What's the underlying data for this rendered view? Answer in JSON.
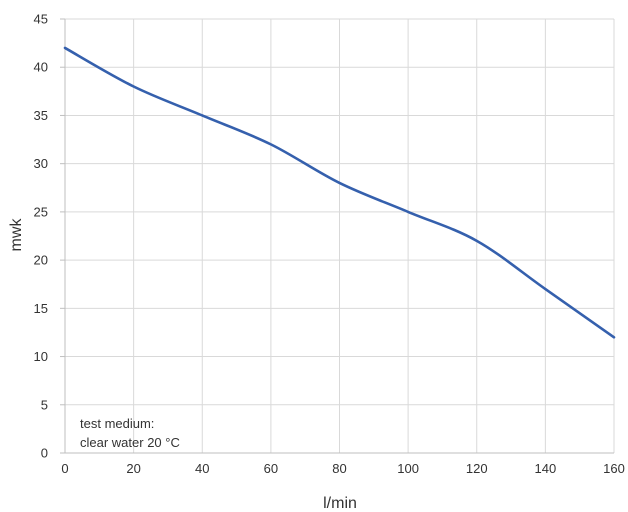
{
  "chart_data": {
    "type": "line",
    "xlabel": "l/min",
    "ylabel": "mwk",
    "xlim": [
      0,
      160
    ],
    "ylim": [
      0,
      45
    ],
    "xticks": [
      "0",
      "20",
      "40",
      "60",
      "80",
      "100",
      "120",
      "140",
      "160"
    ],
    "yticks": [
      "0",
      "5",
      "10",
      "15",
      "20",
      "25",
      "30",
      "35",
      "40",
      "45"
    ],
    "grid": true,
    "series": [
      {
        "color": "#3560ad",
        "x": [
          0,
          20,
          40,
          60,
          80,
          100,
          120,
          140,
          160
        ],
        "y": [
          42,
          38,
          35,
          32,
          28,
          25,
          22,
          17,
          12
        ]
      }
    ],
    "annotation": {
      "line1": "test medium:",
      "line2": "clear water 20 °C"
    }
  }
}
